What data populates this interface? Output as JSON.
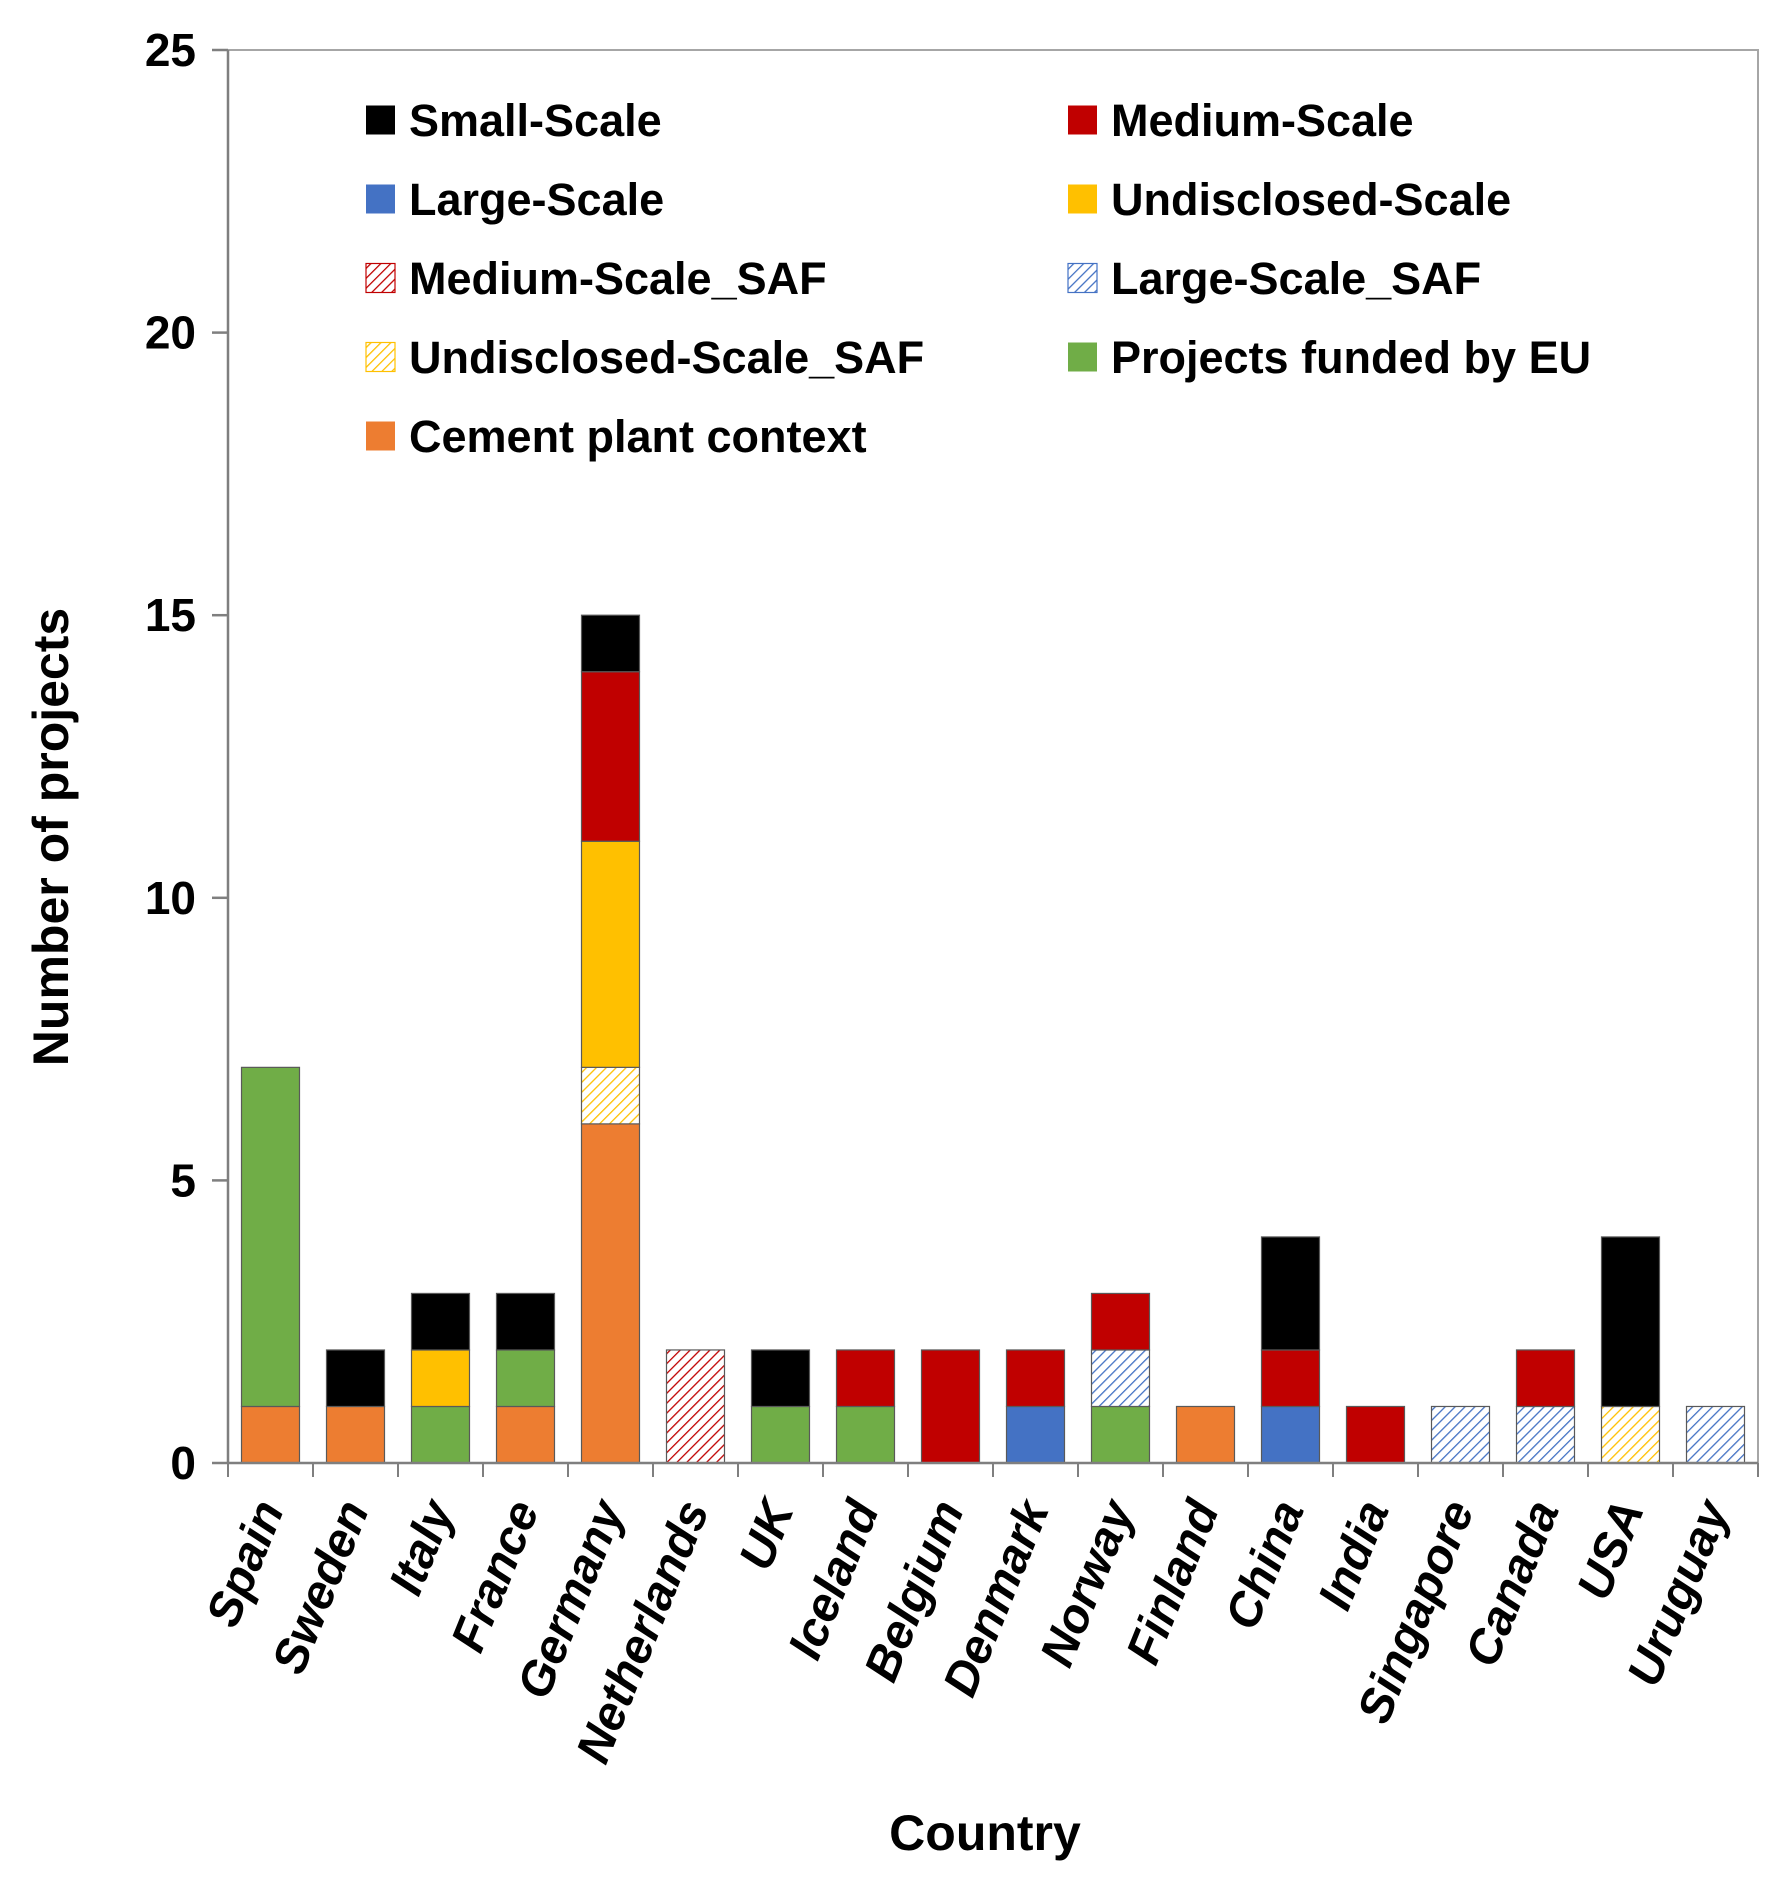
{
  "chart_data": {
    "type": "bar",
    "stacked": true,
    "title": "",
    "xlabel": "Country",
    "ylabel": "Number of projects",
    "ylim": [
      0,
      25
    ],
    "yticks": [
      "0",
      "5",
      "10",
      "15",
      "20",
      "25"
    ],
    "grid": false,
    "legend_position": "top",
    "categories": [
      "Spain",
      "Sweden",
      "Italy",
      "France",
      "Germany",
      "Netherlands",
      "UK",
      "Iceland",
      "Belgium",
      "Denmark",
      "Norway",
      "Finland",
      "China",
      "India",
      "Singapore",
      "Canada",
      "USA",
      "Uruguay"
    ],
    "series": [
      {
        "name": "Cement plant context",
        "color": "#ED7D31",
        "pattern": "solid",
        "values": [
          1,
          1,
          0,
          1,
          6,
          0,
          0,
          0,
          0,
          0,
          0,
          1,
          0,
          0,
          0,
          0,
          0,
          0
        ]
      },
      {
        "name": "Projects funded by EU",
        "color": "#70AD47",
        "pattern": "solid",
        "values": [
          6,
          0,
          1,
          1,
          0,
          0,
          1,
          1,
          0,
          0,
          1,
          0,
          0,
          0,
          0,
          0,
          0,
          0
        ]
      },
      {
        "name": "Large-Scale",
        "color": "#4472C4",
        "pattern": "solid",
        "values": [
          0,
          0,
          0,
          0,
          0,
          0,
          0,
          0,
          0,
          1,
          0,
          0,
          1,
          0,
          0,
          0,
          0,
          0
        ]
      },
      {
        "name": "Large-Scale_SAF",
        "color": "#4472C4",
        "pattern": "hatch",
        "values": [
          0,
          0,
          0,
          0,
          0,
          0,
          0,
          0,
          0,
          0,
          1,
          0,
          0,
          0,
          1,
          1,
          0,
          1
        ]
      },
      {
        "name": "Medium-Scale_SAF",
        "color": "#C00000",
        "pattern": "hatch",
        "values": [
          0,
          0,
          0,
          0,
          0,
          2,
          0,
          0,
          0,
          0,
          0,
          0,
          0,
          0,
          0,
          0,
          0,
          0
        ]
      },
      {
        "name": "Undisclosed-Scale_SAF",
        "color": "#FFC000",
        "pattern": "hatch",
        "values": [
          0,
          0,
          0,
          0,
          1,
          0,
          0,
          0,
          0,
          0,
          0,
          0,
          0,
          0,
          0,
          0,
          1,
          0
        ]
      },
      {
        "name": "Undisclosed-Scale",
        "color": "#FFC000",
        "pattern": "solid",
        "values": [
          0,
          0,
          1,
          0,
          4,
          0,
          0,
          0,
          0,
          0,
          0,
          0,
          0,
          0,
          0,
          0,
          0,
          0
        ]
      },
      {
        "name": "Medium-Scale",
        "color": "#C00000",
        "pattern": "solid",
        "values": [
          0,
          0,
          0,
          0,
          3,
          0,
          0,
          1,
          2,
          1,
          1,
          0,
          1,
          1,
          0,
          1,
          0,
          0
        ]
      },
      {
        "name": "Small-Scale",
        "color": "#000000",
        "pattern": "solid",
        "values": [
          0,
          1,
          1,
          1,
          1,
          0,
          1,
          0,
          0,
          0,
          0,
          0,
          2,
          0,
          0,
          0,
          3,
          0
        ]
      }
    ],
    "legend": [
      "Small-Scale",
      "Medium-Scale",
      "Large-Scale",
      "Undisclosed-Scale",
      "Medium-Scale_SAF",
      "Large-Scale_SAF",
      "Undisclosed-Scale_SAF",
      "Projects funded by EU",
      "Cement plant context"
    ]
  }
}
